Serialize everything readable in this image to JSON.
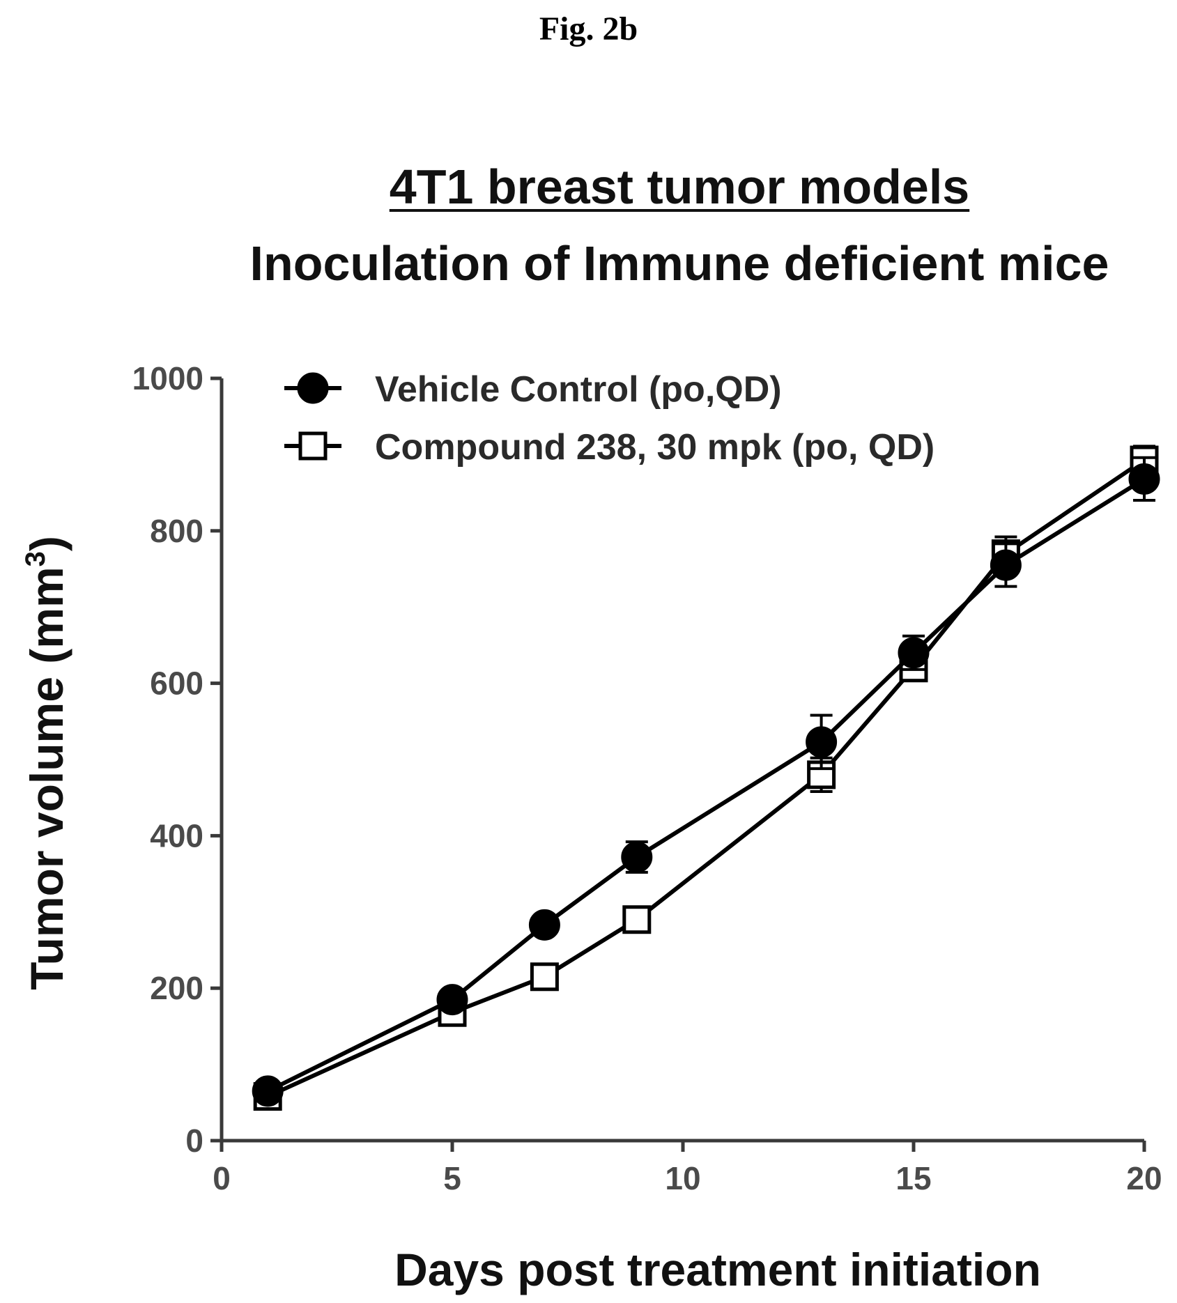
{
  "figure_label": "Fig. 2b",
  "chart_data": {
    "type": "line",
    "title": "4T1 breast tumor models",
    "subtitle": "Inoculation of Immune deficient mice",
    "xlabel": "Days post treatment initiation",
    "ylabel": "Tumor volume (mm",
    "ylabel_superscript": "3",
    "ylabel_close": ")",
    "xlim": [
      0,
      20
    ],
    "ylim": [
      0,
      1000
    ],
    "xticks": [
      0,
      5,
      10,
      15,
      20
    ],
    "yticks": [
      0,
      200,
      400,
      600,
      800,
      1000
    ],
    "legend_position": "top-left",
    "grid": false,
    "series": [
      {
        "name": "Vehicle Control (po,QD)",
        "marker": "filled-circle",
        "color": "#000000",
        "x": [
          1,
          5,
          7,
          9,
          13,
          15,
          17,
          20
        ],
        "y": [
          65,
          185,
          283,
          372,
          523,
          640,
          755,
          868
        ],
        "err": [
          8,
          12,
          10,
          20,
          35,
          22,
          28,
          28
        ]
      },
      {
        "name": "Compound 238, 30 mpk (po, QD)",
        "marker": "open-square",
        "color": "#000000",
        "x": [
          1,
          5,
          7,
          9,
          13,
          15,
          17,
          20
        ],
        "y": [
          58,
          168,
          215,
          290,
          480,
          620,
          770,
          893
        ],
        "err": [
          6,
          8,
          10,
          12,
          22,
          15,
          22,
          18
        ]
      }
    ]
  }
}
